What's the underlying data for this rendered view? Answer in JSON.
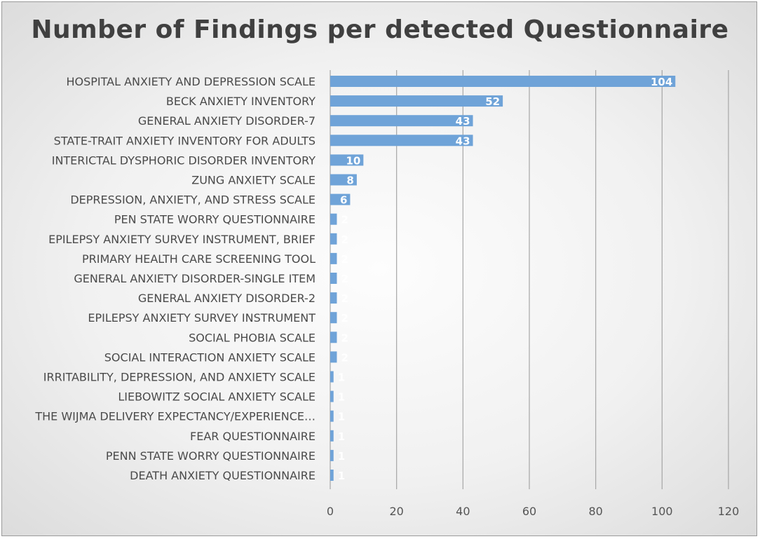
{
  "chart_data": {
    "type": "bar",
    "orientation": "horizontal",
    "title": "Number of Findings per detected Questionnaire",
    "categories": [
      "HOSPITAL ANXIETY AND DEPRESSION SCALE",
      "BECK ANXIETY INVENTORY",
      "GENERAL ANXIETY DISORDER-7",
      "STATE-TRAIT ANXIETY INVENTORY FOR ADULTS",
      "INTERICTAL DYSPHORIC DISORDER INVENTORY",
      "ZUNG ANXIETY SCALE",
      "DEPRESSION, ANXIETY, AND STRESS SCALE",
      "PEN STATE WORRY QUESTIONNAIRE",
      "EPILEPSY ANXIETY SURVEY INSTRUMENT, BRIEF",
      "PRIMARY HEALTH CARE SCREENING TOOL",
      "GENERAL ANXIETY DISORDER-SINGLE ITEM",
      "GENERAL ANXIETY DISORDER-2",
      "EPILEPSY ANXIETY SURVEY INSTRUMENT",
      "SOCIAL PHOBIA SCALE",
      "SOCIAL INTERACTION ANXIETY SCALE",
      "IRRITABILITY, DEPRESSION, AND ANXIETY SCALE",
      "LIEBOWITZ SOCIAL ANXIETY SCALE",
      "THE WIJMA DELIVERY EXPECTANCY/EXPERIENCE…",
      "FEAR QUESTIONNAIRE",
      "PENN STATE WORRY QUESTIONNAIRE",
      "DEATH ANXIETY QUESTIONNAIRE"
    ],
    "values": [
      104,
      52,
      43,
      43,
      10,
      8,
      6,
      2,
      2,
      2,
      2,
      2,
      2,
      2,
      2,
      1,
      1,
      1,
      1,
      1,
      1
    ],
    "xticks": [
      0,
      20,
      40,
      60,
      80,
      100,
      120
    ],
    "xlim": [
      0,
      120
    ],
    "xlabel": "",
    "ylabel": "",
    "grid": "vertical",
    "legend": "none",
    "bar_color": "#6fa3d8",
    "gridline_color": "#a6a6a6",
    "data_label_color": "#ffffff"
  }
}
